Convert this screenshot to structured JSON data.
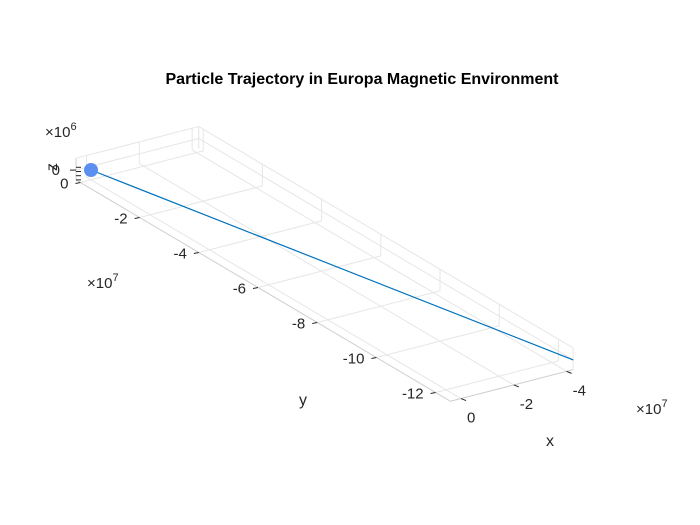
{
  "chart_data": {
    "type": "line",
    "title": "Particle Trajectory in Europa Magnetic Environment",
    "xlabel": "x",
    "ylabel": "y",
    "zlabel": "z",
    "x_multiplier": "×10",
    "x_exponent": "7",
    "y_multiplier": "×10",
    "y_exponent": "7",
    "z_multiplier": "×10",
    "z_exponent": "6",
    "x_ticks": [
      {
        "value": 0,
        "label": "0"
      },
      {
        "value": -2,
        "label": "-2"
      },
      {
        "value": -4,
        "label": "-4"
      }
    ],
    "y_ticks": [
      {
        "value": 0,
        "label": "0"
      },
      {
        "value": -2,
        "label": "-2"
      },
      {
        "value": -4,
        "label": "-4"
      },
      {
        "value": -6,
        "label": "-6"
      },
      {
        "value": -8,
        "label": "-8"
      },
      {
        "value": -10,
        "label": "-10"
      },
      {
        "value": -12,
        "label": "-12"
      }
    ],
    "z_ticks": [
      {
        "value": 0,
        "label": "0"
      }
    ],
    "grid": true,
    "series": [
      {
        "color": "#0072bd",
        "x": [
          -4.25,
          0.0
        ],
        "y": [
          -12.5,
          0.0
        ],
        "z": [
          0.0,
          0.0
        ]
      }
    ],
    "start_marker": {
      "x": 0.0,
      "y": 0.0,
      "z": 0.0,
      "color": "#5b8ff0"
    }
  }
}
